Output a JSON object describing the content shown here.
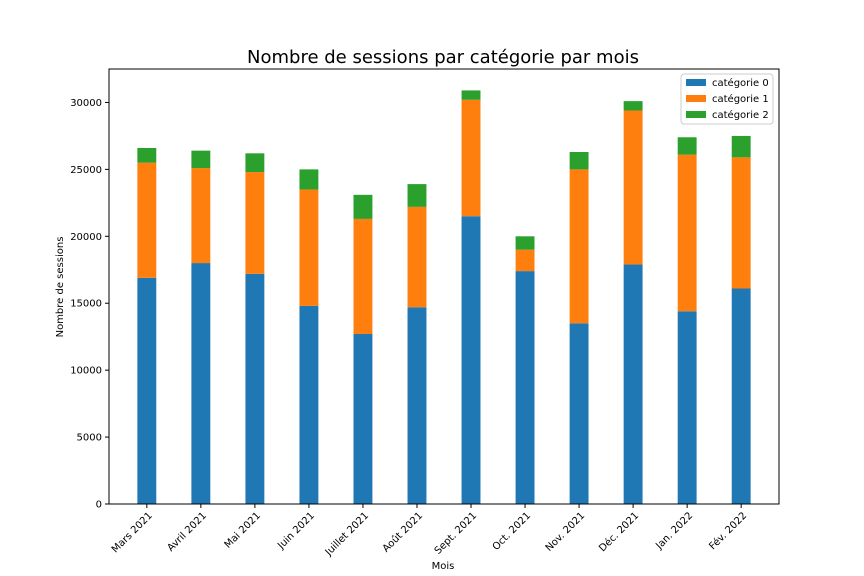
{
  "chart_data": {
    "type": "bar",
    "stacked": true,
    "title": "Nombre de sessions par catégorie par mois",
    "xlabel": "Mois",
    "ylabel": "Nombre de sessions",
    "ylim": [
      0,
      32500
    ],
    "yticks": [
      0,
      5000,
      10000,
      15000,
      20000,
      25000,
      30000
    ],
    "grid": false,
    "legend_position": "top-right",
    "categories": [
      "Mars 2021",
      "Avril 2021",
      "Mai 2021",
      "Juin 2021",
      "Juillet 2021",
      "Août 2021",
      "Sept. 2021",
      "Oct. 2021",
      "Nov. 2021",
      "Déc. 2021",
      "Jan. 2022",
      "Fév. 2022"
    ],
    "series": [
      {
        "name": "catégorie 0",
        "color": "#1f77b4",
        "values": [
          16900,
          18000,
          17200,
          14800,
          12700,
          14700,
          21500,
          17400,
          13500,
          17900,
          14400,
          16100
        ]
      },
      {
        "name": "catégorie 1",
        "color": "#ff7f0e",
        "values": [
          8600,
          7100,
          7600,
          8700,
          8600,
          7500,
          8700,
          1600,
          11500,
          11500,
          11700,
          9800
        ]
      },
      {
        "name": "catégorie 2",
        "color": "#2ca02c",
        "values": [
          1100,
          1300,
          1400,
          1500,
          1800,
          1700,
          700,
          1000,
          1300,
          700,
          1300,
          1600
        ]
      }
    ]
  }
}
